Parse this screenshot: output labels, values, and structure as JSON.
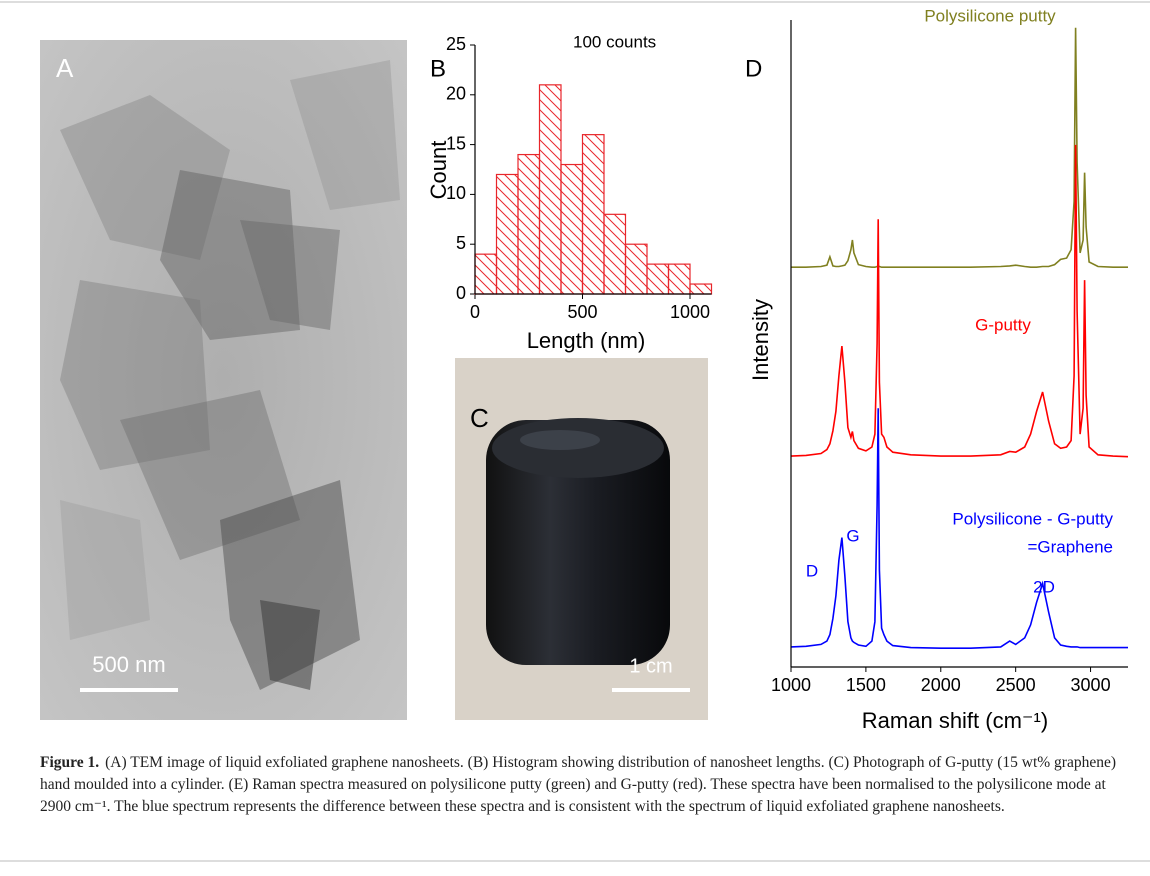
{
  "figure": {
    "panel_a": {
      "label": "A",
      "scale_bar": "500 nm"
    },
    "panel_c": {
      "label": "C",
      "scale_bar": "1 cm"
    }
  },
  "chart_data": [
    {
      "type": "histogram",
      "panel_label": "B",
      "annotation": "100 counts",
      "xlabel": "Length (nm)",
      "ylabel": "Count",
      "bins": [
        0,
        100,
        200,
        300,
        400,
        500,
        600,
        700,
        800,
        900,
        1000,
        1100
      ],
      "values": [
        4,
        12,
        14,
        21,
        13,
        16,
        8,
        5,
        3,
        3,
        1
      ],
      "color": "#e8262b",
      "hatch": true,
      "xlim": [
        0,
        1100
      ],
      "ylim": [
        0,
        25
      ],
      "xticks": [
        0,
        500,
        1000
      ],
      "yticks": [
        0,
        5,
        10,
        15,
        20,
        25
      ]
    },
    {
      "type": "line",
      "panel_label": "D",
      "xlabel": "Raman shift (cm⁻¹)",
      "ylabel": "Intensity",
      "x": [
        1000,
        1100,
        1200,
        1240,
        1260,
        1280,
        1300,
        1320,
        1340,
        1360,
        1380,
        1400,
        1410,
        1420,
        1450,
        1500,
        1540,
        1560,
        1575,
        1582,
        1590,
        1605,
        1620,
        1640,
        1680,
        1800,
        2000,
        2200,
        2400,
        2460,
        2500,
        2560,
        2600,
        2640,
        2680,
        2720,
        2760,
        2800,
        2840,
        2870,
        2890,
        2900,
        2910,
        2930,
        2950,
        2960,
        2970,
        2990,
        3050,
        3150,
        3250
      ],
      "series": [
        {
          "name": "Polysilicone putty",
          "color": "#808020",
          "values": [
            61.8,
            61.8,
            61.9,
            62.1,
            63.4,
            62.0,
            61.9,
            61.9,
            62.0,
            62.1,
            62.8,
            64.5,
            66.0,
            64.0,
            62.2,
            61.9,
            61.8,
            61.8,
            61.9,
            62.0,
            61.9,
            61.8,
            61.8,
            61.8,
            61.8,
            61.8,
            61.8,
            61.8,
            61.9,
            62.0,
            62.1,
            61.9,
            61.8,
            61.8,
            61.9,
            61.9,
            62.2,
            63.0,
            63.2,
            64.5,
            72.0,
            98.8,
            78.0,
            64.0,
            66.0,
            76.4,
            68.0,
            62.6,
            61.9,
            61.8,
            61.8
          ]
        },
        {
          "name": "G-putty",
          "color": "#ff0000",
          "values": [
            32.6,
            32.7,
            33.0,
            33.6,
            34.5,
            36.5,
            39.5,
            45.0,
            49.6,
            44.0,
            37.0,
            35.5,
            36.4,
            35.0,
            33.8,
            33.4,
            34.0,
            36.0,
            50.0,
            69.2,
            44.0,
            36.0,
            35.5,
            34.0,
            33.2,
            32.8,
            32.6,
            32.6,
            32.8,
            33.3,
            33.2,
            34.0,
            36.0,
            39.5,
            42.5,
            38.0,
            34.5,
            33.8,
            34.0,
            35.0,
            45.0,
            80.7,
            55.0,
            36.0,
            40.0,
            59.8,
            42.0,
            34.0,
            32.8,
            32.6,
            32.5
          ]
        },
        {
          "name": "Polysilicone - G-putty",
          "color": "#0000ff",
          "values": [
            3.1,
            3.2,
            3.5,
            4.0,
            5.0,
            7.5,
            11.0,
            16.5,
            20.0,
            14.0,
            7.0,
            4.5,
            4.0,
            3.8,
            3.4,
            3.2,
            4.0,
            7.0,
            25.0,
            40.0,
            15.0,
            6.0,
            5.0,
            4.0,
            3.3,
            3.0,
            2.9,
            2.9,
            3.1,
            4.0,
            3.5,
            4.5,
            6.5,
            10.0,
            12.9,
            8.5,
            4.5,
            3.4,
            3.2,
            3.1,
            3.1,
            3.1,
            3.1,
            3.0,
            3.0,
            3.0,
            3.0,
            3.0,
            3.0,
            3.0,
            3.0
          ]
        }
      ],
      "annotations": [
        {
          "text": "=Graphene",
          "color": "#0000ff"
        },
        {
          "text": "D",
          "color": "#0000ff"
        },
        {
          "text": "G",
          "color": "#0000ff"
        },
        {
          "text": "2D",
          "color": "#0000ff"
        }
      ],
      "xlim": [
        1000,
        3250
      ],
      "ylim": [
        0,
        100
      ],
      "xticks": [
        1000,
        1500,
        2000,
        2500,
        3000
      ]
    }
  ],
  "caption": {
    "label": "Figure 1.",
    "text": "(A) TEM image of liquid exfoliated graphene nanosheets. (B) Histogram showing distribution of nanosheet lengths. (C) Photograph of G-putty (15 wt% graphene) hand moulded into a cylinder. (E) Raman spectra measured on polysilicone putty (green) and G-putty (red). These spectra have been normalised to the polysilicone mode at 2900 cm⁻¹. The blue spectrum represents the difference between these spectra and is consistent with the spectrum of liquid exfoliated graphene nanosheets."
  }
}
